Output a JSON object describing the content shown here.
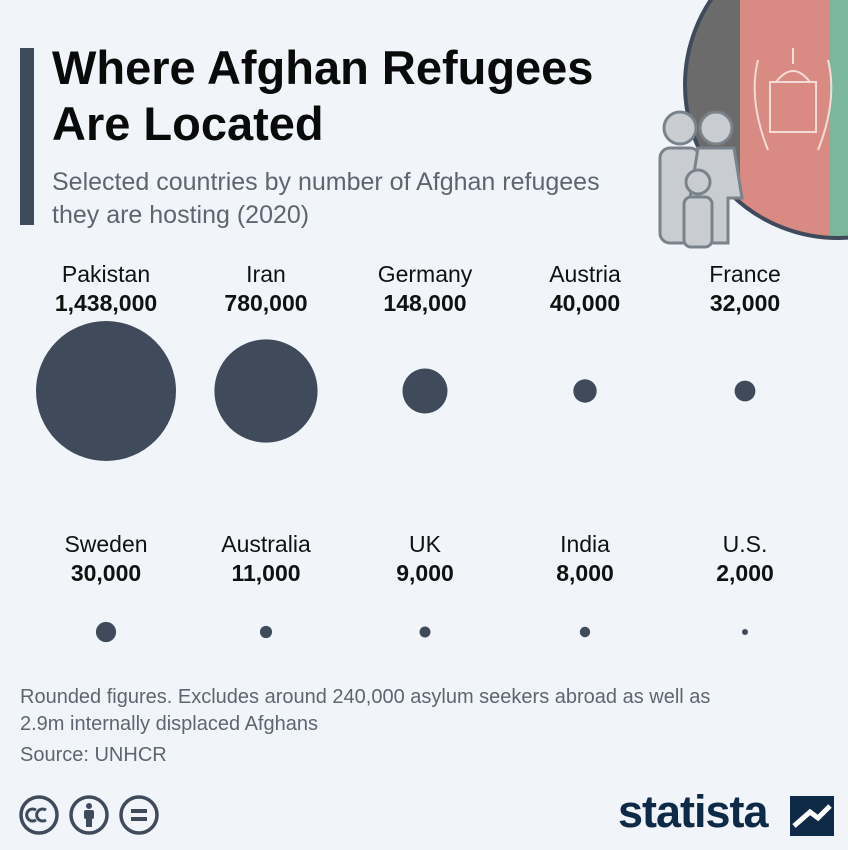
{
  "header": {
    "title": "Where Afghan Refugees Are Located",
    "subtitle": "Selected countries by number of Afghan refugees they are hosting (2020)"
  },
  "colors": {
    "bubble": "#3f4b5b",
    "flag_black": "#6b6b6b",
    "flag_red": "#d98a82",
    "flag_green": "#7cb79c",
    "accent": "#3f4b5b"
  },
  "chart_data": {
    "type": "bubble",
    "categories": [
      "Pakistan",
      "Iran",
      "Germany",
      "Austria",
      "France",
      "Sweden",
      "Australia",
      "UK",
      "India",
      "U.S."
    ],
    "value_labels": [
      "1,438,000",
      "780,000",
      "148,000",
      "40,000",
      "32,000",
      "30,000",
      "11,000",
      "9,000",
      "8,000",
      "2,000"
    ],
    "values": [
      1438000,
      780000,
      148000,
      40000,
      32000,
      30000,
      11000,
      9000,
      8000,
      2000
    ],
    "title": "Where Afghan Refugees Are Located",
    "subtitle": "Selected countries by number of Afghan refugees they are hosting (2020)"
  },
  "footer": {
    "note": "Rounded figures. Excludes around 240,000 asylum seekers abroad as well as 2.9m internally displaced Afghans",
    "source": "Source: UNHCR",
    "brand": "statista",
    "icons": [
      "cc-icon",
      "person-icon",
      "equals-icon"
    ]
  }
}
